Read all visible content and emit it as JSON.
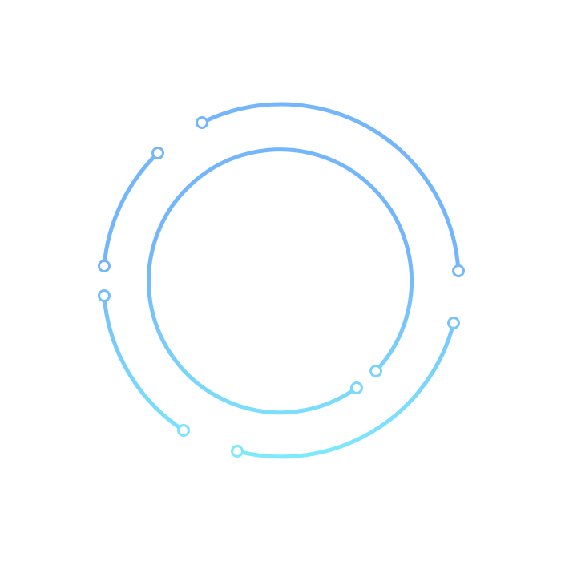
{
  "colors": {
    "top": "#74b6fb",
    "bottom": "#7eeafb",
    "background": "#ffffff"
  }
}
